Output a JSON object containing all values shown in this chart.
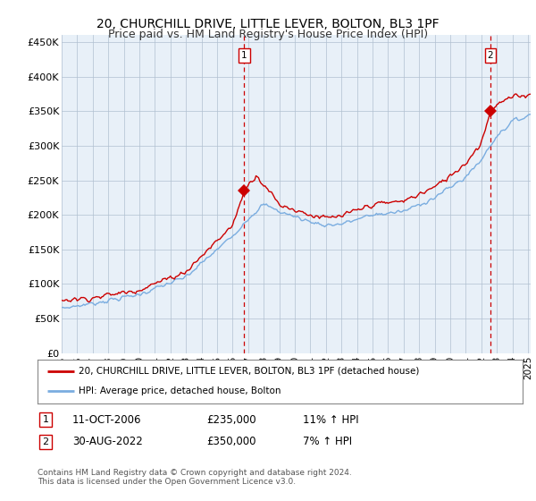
{
  "title": "20, CHURCHILL DRIVE, LITTLE LEVER, BOLTON, BL3 1PF",
  "subtitle": "Price paid vs. HM Land Registry's House Price Index (HPI)",
  "ylabel_ticks": [
    "£0",
    "£50K",
    "£100K",
    "£150K",
    "£200K",
    "£250K",
    "£300K",
    "£350K",
    "£400K",
    "£450K"
  ],
  "ylim": [
    0,
    460000
  ],
  "yticks": [
    0,
    50000,
    100000,
    150000,
    200000,
    250000,
    300000,
    350000,
    400000,
    450000
  ],
  "marker1_price": 235000,
  "marker1_year": "11-OCT-2006",
  "marker1_hpi": "11% ↑ HPI",
  "marker2_price": 350000,
  "marker2_year": "30-AUG-2022",
  "marker2_hpi": "7% ↑ HPI",
  "legend_entry1": "20, CHURCHILL DRIVE, LITTLE LEVER, BOLTON, BL3 1PF (detached house)",
  "legend_entry2": "HPI: Average price, detached house, Bolton",
  "footnote": "Contains HM Land Registry data © Crown copyright and database right 2024.\nThis data is licensed under the Open Government Licence v3.0.",
  "property_color": "#cc0000",
  "hpi_color": "#7aade0",
  "plot_bg_color": "#e8f0f8",
  "background_color": "#ffffff",
  "grid_color": "#b0c0d0",
  "title_fontsize": 10,
  "subtitle_fontsize": 9,
  "year_start": 1995,
  "year_end": 2025
}
